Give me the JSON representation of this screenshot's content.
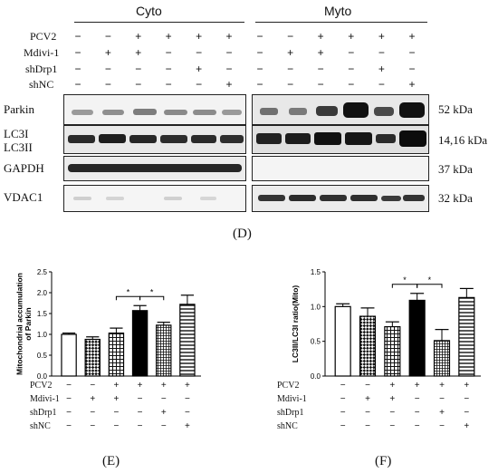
{
  "blot": {
    "cyto_header": "Cyto",
    "mito_header": "Myto",
    "treatments": [
      {
        "label": "PCV2",
        "cyto": [
          "−",
          "−",
          "+",
          "+",
          "+",
          "+"
        ],
        "mito": [
          "−",
          "−",
          "+",
          "+",
          "+",
          "+"
        ]
      },
      {
        "label": "Mdivi-1",
        "cyto": [
          "−",
          "+",
          "+",
          "−",
          "−",
          "−"
        ],
        "mito": [
          "−",
          "+",
          "+",
          "−",
          "−",
          "−"
        ]
      },
      {
        "label": "shDrp1",
        "cyto": [
          "−",
          "−",
          "−",
          "−",
          "+",
          "−"
        ],
        "mito": [
          "−",
          "−",
          "−",
          "−",
          "+",
          "−"
        ]
      },
      {
        "label": "shNC",
        "cyto": [
          "−",
          "−",
          "−",
          "−",
          "−",
          "+"
        ],
        "mito": [
          "−",
          "−",
          "−",
          "−",
          "−",
          "+"
        ]
      }
    ],
    "rows": [
      {
        "label": "Parkin",
        "size": "52 kDa"
      },
      {
        "label": "LC3I",
        "label2": "LC3II",
        "size": "14,16 kDa"
      },
      {
        "label": "GAPDH",
        "size": "37 kDa"
      },
      {
        "label": "VDAC1",
        "size": "32 kDa"
      }
    ],
    "panel_label": "(D)"
  },
  "chart_data": [
    {
      "type": "bar",
      "panel_label": "(E)",
      "ylabel": "Mitochondrial accumulation of Parkin",
      "ylim": [
        0,
        2.5
      ],
      "yticks": [
        "0.0",
        "0.5",
        "1.0",
        "1.5",
        "2.0",
        "2.5"
      ],
      "values": [
        1.0,
        0.88,
        1.03,
        1.57,
        1.22,
        1.72
      ],
      "errors": [
        0.03,
        0.06,
        0.12,
        0.12,
        0.07,
        0.22
      ],
      "significance": [
        "*",
        "*"
      ],
      "treatments": [
        {
          "label": "PCV2",
          "signs": [
            "−",
            "−",
            "+",
            "+",
            "+",
            "+"
          ]
        },
        {
          "label": "Mdivi-1",
          "signs": [
            "−",
            "+",
            "+",
            "−",
            "−",
            "−"
          ]
        },
        {
          "label": "shDrp1",
          "signs": [
            "−",
            "−",
            "−",
            "−",
            "+",
            "−"
          ]
        },
        {
          "label": "shNC",
          "signs": [
            "−",
            "−",
            "−",
            "−",
            "−",
            "+"
          ]
        }
      ]
    },
    {
      "type": "bar",
      "panel_label": "(F)",
      "ylabel": "LC3II/LC3I  ratio(Mito)",
      "ylim": [
        0,
        1.5
      ],
      "yticks": [
        "0.0",
        "0.5",
        "1.0",
        "1.5"
      ],
      "values": [
        1.0,
        0.86,
        0.71,
        1.09,
        0.51,
        1.13
      ],
      "errors": [
        0.04,
        0.12,
        0.07,
        0.1,
        0.16,
        0.13
      ],
      "significance": [
        "*",
        "*"
      ],
      "treatments": [
        {
          "label": "PCV2",
          "signs": [
            "−",
            "−",
            "+",
            "+",
            "+",
            "+"
          ]
        },
        {
          "label": "Mdivi-1",
          "signs": [
            "−",
            "+",
            "+",
            "−",
            "−",
            "−"
          ]
        },
        {
          "label": "shDrp1",
          "signs": [
            "−",
            "−",
            "−",
            "−",
            "+",
            "−"
          ]
        },
        {
          "label": "shNC",
          "signs": [
            "−",
            "−",
            "−",
            "−",
            "−",
            "+"
          ]
        }
      ]
    }
  ]
}
